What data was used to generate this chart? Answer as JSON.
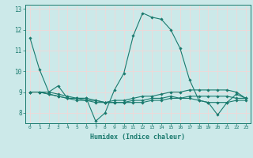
{
  "title": "",
  "xlabel": "Humidex (Indice chaleur)",
  "ylabel": "",
  "background_color": "#cce9e9",
  "grid_color": "#f0d8d8",
  "line_color": "#1a7a6e",
  "xlim": [
    -0.5,
    23.5
  ],
  "ylim": [
    7.5,
    13.2
  ],
  "yticks": [
    8,
    9,
    10,
    11,
    12,
    13
  ],
  "xticks": [
    0,
    1,
    2,
    3,
    4,
    5,
    6,
    7,
    8,
    9,
    10,
    11,
    12,
    13,
    14,
    15,
    16,
    17,
    18,
    19,
    20,
    21,
    22,
    23
  ],
  "series": [
    [
      11.6,
      10.1,
      9.0,
      9.3,
      8.7,
      8.7,
      8.7,
      7.6,
      8.0,
      9.1,
      9.9,
      11.7,
      12.8,
      12.6,
      12.5,
      12.0,
      11.1,
      9.6,
      8.6,
      8.5,
      7.9,
      8.5,
      8.9,
      8.7
    ],
    [
      9.0,
      9.0,
      8.9,
      8.8,
      8.7,
      8.7,
      8.6,
      8.6,
      8.5,
      8.5,
      8.5,
      8.6,
      8.6,
      8.7,
      8.7,
      8.8,
      8.7,
      8.7,
      8.6,
      8.5,
      8.5,
      8.5,
      8.6,
      8.6
    ],
    [
      9.0,
      9.0,
      8.9,
      8.8,
      8.7,
      8.6,
      8.6,
      8.5,
      8.5,
      8.6,
      8.6,
      8.7,
      8.8,
      8.8,
      8.9,
      9.0,
      9.0,
      9.1,
      9.1,
      9.1,
      9.1,
      9.1,
      9.0,
      8.7
    ],
    [
      9.0,
      9.0,
      9.0,
      8.9,
      8.8,
      8.7,
      8.7,
      8.6,
      8.5,
      8.5,
      8.5,
      8.5,
      8.5,
      8.6,
      8.6,
      8.7,
      8.7,
      8.8,
      8.8,
      8.8,
      8.8,
      8.8,
      8.7,
      8.7
    ]
  ]
}
